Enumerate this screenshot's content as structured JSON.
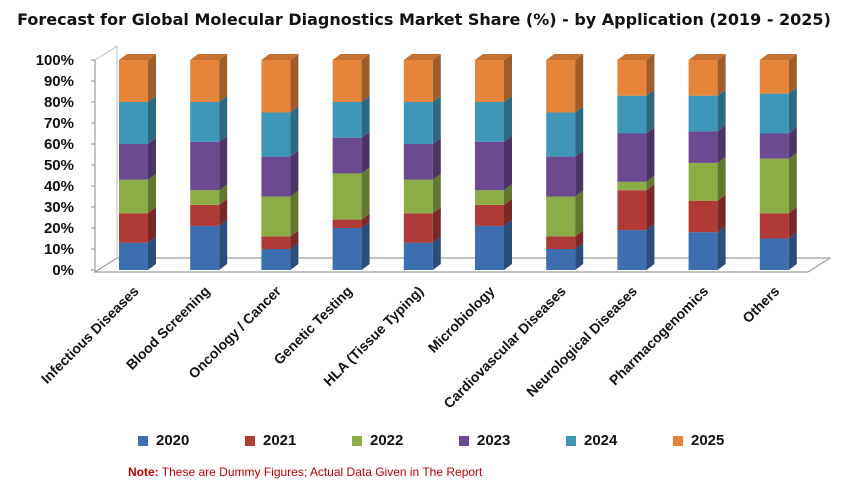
{
  "chart_data": {
    "type": "bar",
    "stacked": true,
    "three_d": true,
    "title": "Forecast for Global Molecular Diagnostics Market Share (%) - by Application (2019 - 2025)",
    "ylim": [
      0,
      100
    ],
    "y_ticks": [
      "0%",
      "10%",
      "20%",
      "30%",
      "40%",
      "50%",
      "60%",
      "70%",
      "80%",
      "90%",
      "100%"
    ],
    "legend_position": "bottom",
    "categories": [
      "Infectious Diseases",
      "Blood Screening",
      "Oncology / Cancer",
      "Genetic Testing",
      "HLA (Tissue Typing)",
      "Microbiology",
      "Cardiovascular Diseases",
      "Neurological Diseases",
      "Pharmacogenomics",
      "Others"
    ],
    "series": [
      {
        "name": "2020",
        "color": "#3c6eb0",
        "values": [
          13,
          21,
          10,
          20,
          13,
          21,
          10,
          19,
          18,
          15
        ]
      },
      {
        "name": "2021",
        "color": "#b03a36",
        "values": [
          14,
          10,
          6,
          4,
          14,
          10,
          6,
          19,
          15,
          12
        ]
      },
      {
        "name": "2022",
        "color": "#8cac46",
        "values": [
          16,
          7,
          19,
          22,
          16,
          7,
          19,
          4,
          18,
          26
        ]
      },
      {
        "name": "2023",
        "color": "#6c4a92",
        "values": [
          17,
          23,
          19,
          17,
          17,
          23,
          19,
          23,
          15,
          12
        ]
      },
      {
        "name": "2024",
        "color": "#3e97b9",
        "values": [
          20,
          19,
          21,
          17,
          20,
          19,
          21,
          18,
          17,
          19
        ]
      },
      {
        "name": "2025",
        "color": "#e6853a",
        "values": [
          20,
          20,
          25,
          20,
          20,
          20,
          25,
          17,
          17,
          16
        ]
      }
    ]
  },
  "note": {
    "label": "Note:",
    "text": " These are Dummy Figures; Actual Data Given in The Report"
  }
}
